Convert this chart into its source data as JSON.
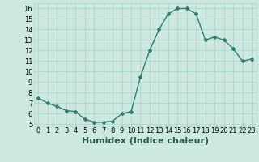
{
  "x": [
    0,
    1,
    2,
    3,
    4,
    5,
    6,
    7,
    8,
    9,
    10,
    11,
    12,
    13,
    14,
    15,
    16,
    17,
    18,
    19,
    20,
    21,
    22,
    23
  ],
  "y": [
    7.5,
    7.0,
    6.7,
    6.3,
    6.2,
    5.5,
    5.2,
    5.2,
    5.3,
    6.0,
    6.2,
    9.5,
    12.0,
    14.0,
    15.5,
    16.0,
    16.0,
    15.5,
    13.0,
    13.3,
    13.0,
    12.2,
    11.0,
    11.2
  ],
  "line_color": "#2e7d6e",
  "marker": "D",
  "marker_size": 2,
  "xlabel": "Humidex (Indice chaleur)",
  "xlim": [
    -0.5,
    23.5
  ],
  "ylim": [
    4.8,
    16.5
  ],
  "yticks": [
    5,
    6,
    7,
    8,
    9,
    10,
    11,
    12,
    13,
    14,
    15,
    16
  ],
  "xticks": [
    0,
    1,
    2,
    3,
    4,
    5,
    6,
    7,
    8,
    9,
    10,
    11,
    12,
    13,
    14,
    15,
    16,
    17,
    18,
    19,
    20,
    21,
    22,
    23
  ],
  "bg_color": "#cce8e0",
  "grid_color": "#b0d8cc",
  "tick_fontsize": 6,
  "xlabel_fontsize": 8
}
